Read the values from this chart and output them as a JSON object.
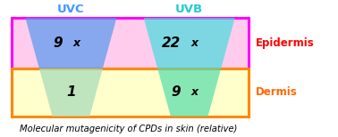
{
  "title": "Molecular mutagenicity of CPDs in skin (relative)",
  "uvc_label": "UVC",
  "uvb_label": "UVB",
  "epidermis_label": "Epidermis",
  "dermis_label": "Dermis",
  "epidermis_uvc_value": "9",
  "epidermis_uvb_value": "22",
  "dermis_uvc_value": "1",
  "dermis_uvb_value": "9",
  "uvc_color": "#5599ee",
  "uvb_color": "#44dddd",
  "epidermis_bg": "#ffccee",
  "dermis_bg": "#ffffcc",
  "epidermis_border": "#ff00ff",
  "dermis_border": "#ff8800",
  "uvc_label_color": "#4499ff",
  "uvb_label_color": "#22cccc",
  "epidermis_label_color": "#ff0000",
  "dermis_label_color": "#ff6600",
  "title_color": "#000000",
  "fig_width": 3.78,
  "fig_height": 1.54,
  "dpi": 100
}
